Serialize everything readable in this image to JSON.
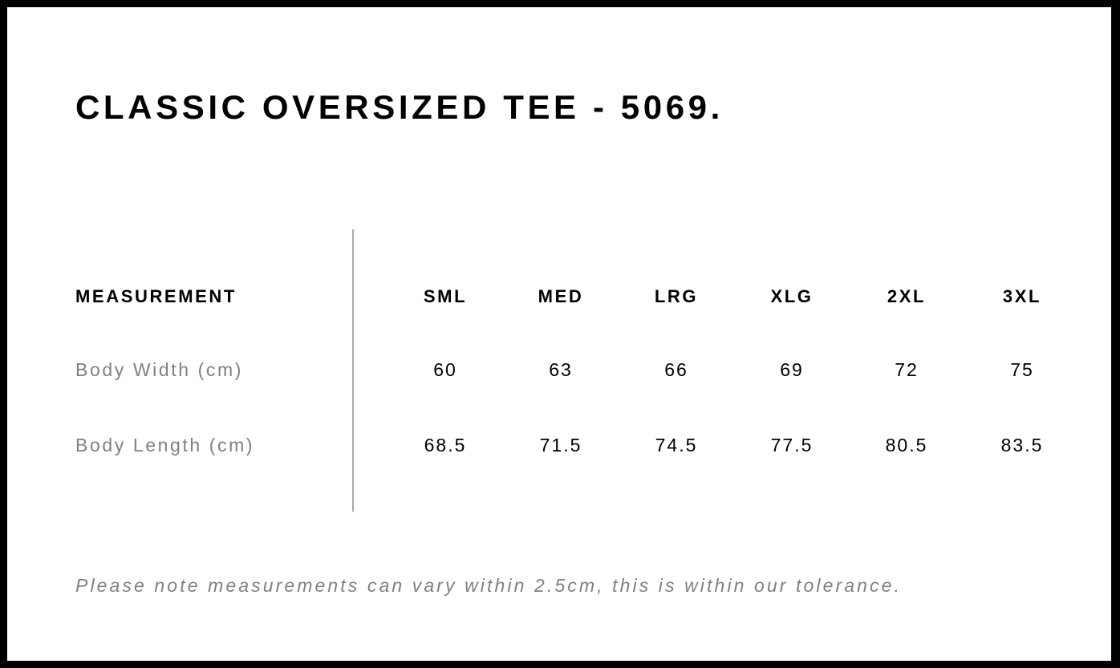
{
  "title": "CLASSIC OVERSIZED TEE - 5069.",
  "table": {
    "header_label": "MEASUREMENT",
    "sizes": [
      "SML",
      "MED",
      "LRG",
      "XLG",
      "2XL",
      "3XL"
    ],
    "rows": [
      {
        "label": "Body Width (cm)",
        "values": [
          "60",
          "63",
          "66",
          "69",
          "72",
          "75"
        ]
      },
      {
        "label": "Body Length (cm)",
        "values": [
          "68.5",
          "71.5",
          "74.5",
          "77.5",
          "80.5",
          "83.5"
        ]
      }
    ]
  },
  "note": "Please note measurements can vary within 2.5cm, this is within our tolerance."
}
